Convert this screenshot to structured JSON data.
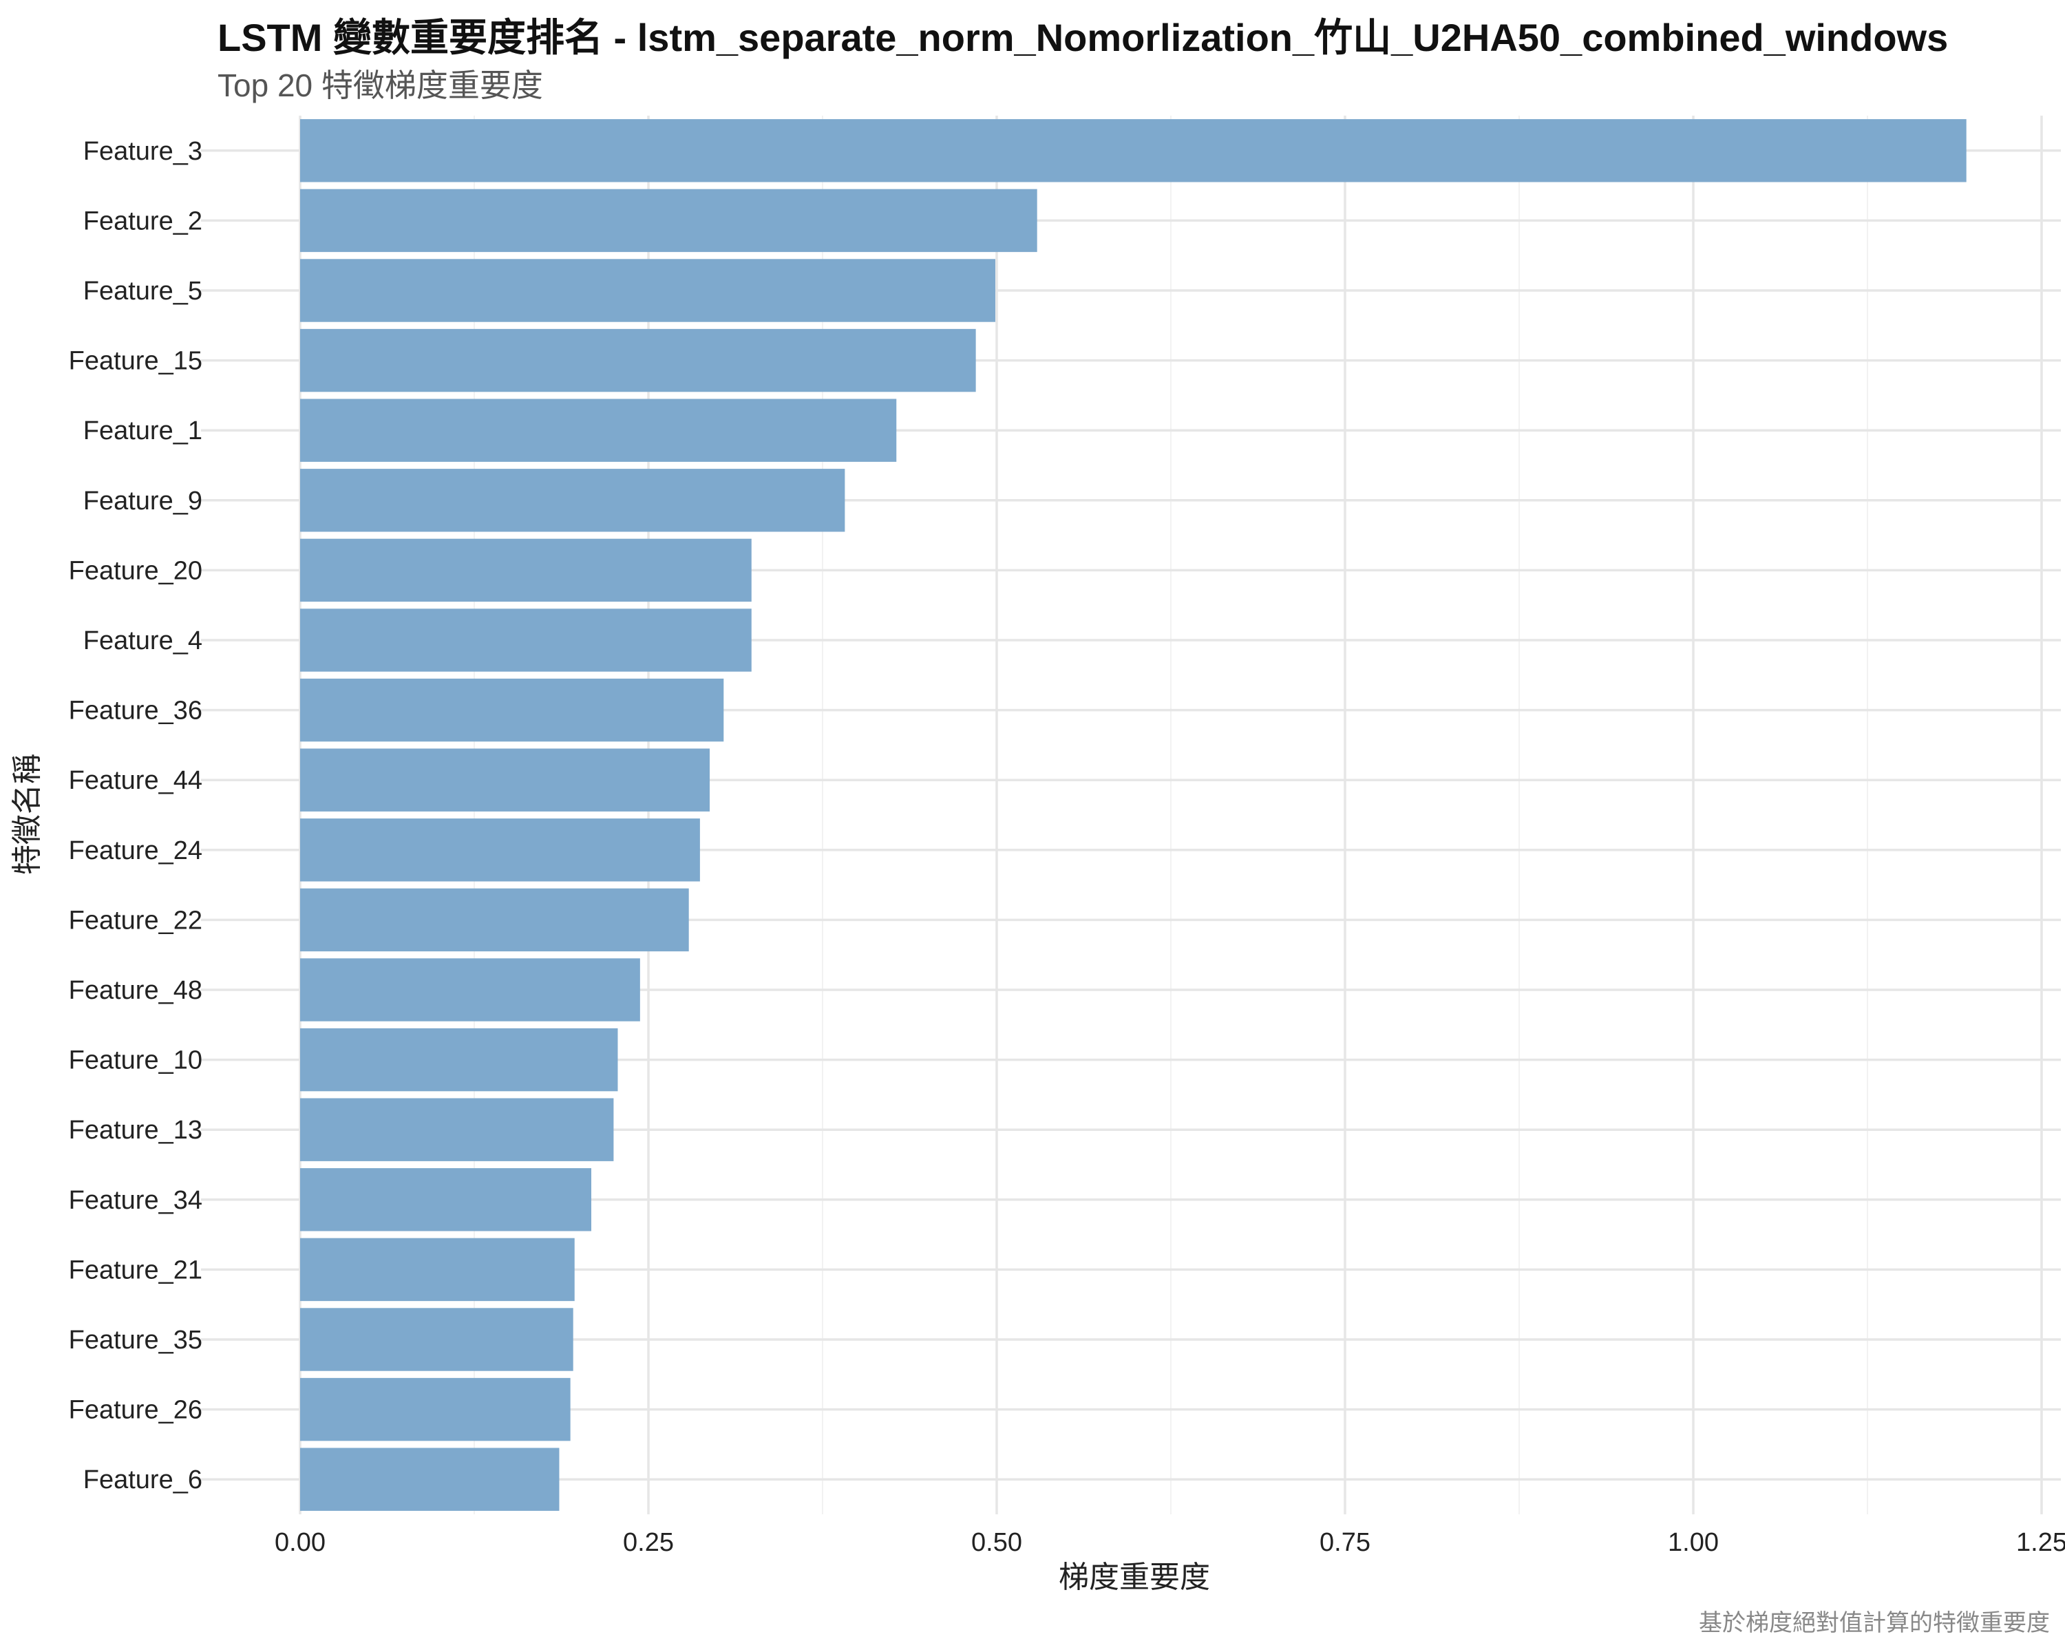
{
  "chart_data": {
    "type": "bar",
    "orientation": "horizontal",
    "title": "LSTM 變數重要度排名 - lstm_separate_norm_Nomorlization_竹山_U2HA50_combined_windows",
    "subtitle": "Top 20 特徵梯度重要度",
    "xlabel": "梯度重要度",
    "ylabel": "特徵名稱",
    "caption": "基於梯度絕對值計算的特徵重要度",
    "xlim": [
      -0.06,
      1.25
    ],
    "xticks": [
      0.0,
      0.25,
      0.5,
      0.75,
      1.0,
      1.25
    ],
    "xtick_labels": [
      "0.00",
      "0.25",
      "0.50",
      "0.75",
      "1.00",
      "1.25"
    ],
    "grid": true,
    "bar_color": "#7BA7CC",
    "categories": [
      "Feature_3",
      "Feature_2",
      "Feature_5",
      "Feature_15",
      "Feature_1",
      "Feature_9",
      "Feature_20",
      "Feature_4",
      "Feature_36",
      "Feature_44",
      "Feature_24",
      "Feature_22",
      "Feature_48",
      "Feature_10",
      "Feature_13",
      "Feature_34",
      "Feature_21",
      "Feature_35",
      "Feature_26",
      "Feature_6"
    ],
    "values": [
      1.196,
      0.529,
      0.499,
      0.485,
      0.428,
      0.391,
      0.324,
      0.324,
      0.304,
      0.294,
      0.287,
      0.279,
      0.244,
      0.228,
      0.225,
      0.209,
      0.197,
      0.196,
      0.194,
      0.186
    ]
  }
}
